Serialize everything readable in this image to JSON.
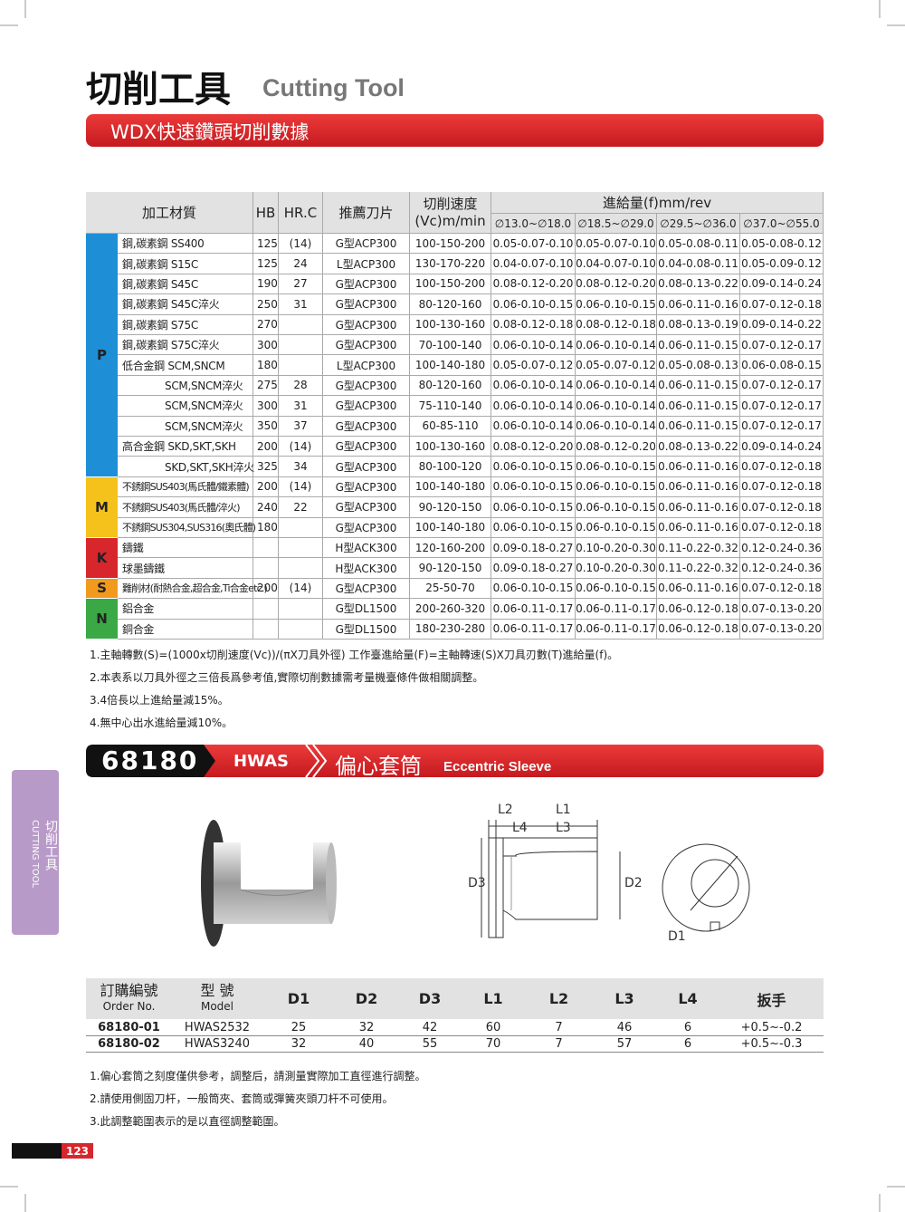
{
  "header": {
    "title": "切削工具",
    "subtitle": "Cutting Tool"
  },
  "section1": {
    "banner": "WDX快速鑽頭切削數據",
    "table": {
      "headers": {
        "material": "加工材質",
        "hb": "HB",
        "hrc": "HR.C",
        "insert": "推薦刀片",
        "speed": "切削速度",
        "speed_unit": "(Vc)m/min",
        "feed": "進給量(f)mm/rev",
        "ranges": [
          "∅13.0~∅18.0",
          "∅18.5~∅29.0",
          "∅29.5~∅36.0",
          "∅37.0~∅55.0"
        ]
      },
      "groups": [
        {
          "label": "P",
          "color": "#1e8fd6",
          "rows": [
            [
              "鋼,碳素鋼 SS400",
              125,
              "(14)",
              "G型ACP300",
              "100-150-200",
              "0.05-0.07-0.10",
              "0.05-0.07-0.10",
              "0.05-0.08-0.11",
              "0.05-0.08-0.12"
            ],
            [
              "鋼,碳素鋼 S15C",
              125,
              24,
              "L型ACP300",
              "130-170-220",
              "0.04-0.07-0.10",
              "0.04-0.07-0.10",
              "0.04-0.08-0.11",
              "0.05-0.09-0.12"
            ],
            [
              "鋼,碳素鋼 S45C",
              190,
              27,
              "G型ACP300",
              "100-150-200",
              "0.08-0.12-0.20",
              "0.08-0.12-0.20",
              "0.08-0.13-0.22",
              "0.09-0.14-0.24"
            ],
            [
              "鋼,碳素鋼 S45C淬火",
              250,
              31,
              "G型ACP300",
              "80-120-160",
              "0.06-0.10-0.15",
              "0.06-0.10-0.15",
              "0.06-0.11-0.16",
              "0.07-0.12-0.18"
            ],
            [
              "鋼,碳素鋼 S75C",
              270,
              null,
              "G型ACP300",
              "100-130-160",
              "0.08-0.12-0.18",
              "0.08-0.12-0.18",
              "0.08-0.13-0.19",
              "0.09-0.14-0.22"
            ],
            [
              "鋼,碳素鋼 S75C淬火",
              300,
              null,
              "G型ACP300",
              "70-100-140",
              "0.06-0.10-0.14",
              "0.06-0.10-0.14",
              "0.06-0.11-0.15",
              "0.07-0.12-0.17"
            ],
            [
              "低合金鋼 SCM,SNCM",
              180,
              null,
              "L型ACP300",
              "100-140-180",
              "0.05-0.07-0.12",
              "0.05-0.07-0.12",
              "0.05-0.08-0.13",
              "0.06-0.08-0.15"
            ],
            [
              "SCM,SNCM淬火",
              275,
              28,
              "G型ACP300",
              "80-120-160",
              "0.06-0.10-0.14",
              "0.06-0.10-0.14",
              "0.06-0.11-0.15",
              "0.07-0.12-0.17"
            ],
            [
              "SCM,SNCM淬火",
              300,
              31,
              "G型ACP300",
              "75-110-140",
              "0.06-0.10-0.14",
              "0.06-0.10-0.14",
              "0.06-0.11-0.15",
              "0.07-0.12-0.17"
            ],
            [
              "SCM,SNCM淬火",
              350,
              37,
              "G型ACP300",
              "60-85-110",
              "0.06-0.10-0.14",
              "0.06-0.10-0.14",
              "0.06-0.11-0.15",
              "0.07-0.12-0.17"
            ],
            [
              "高合金鋼 SKD,SKT,SKH",
              200,
              "(14)",
              "G型ACP300",
              "100-130-160",
              "0.08-0.12-0.20",
              "0.08-0.12-0.20",
              "0.08-0.13-0.22",
              "0.09-0.14-0.24"
            ],
            [
              "SKD,SKT,SKH淬火",
              325,
              34,
              "G型ACP300",
              "80-100-120",
              "0.06-0.10-0.15",
              "0.06-0.10-0.15",
              "0.06-0.11-0.16",
              "0.07-0.12-0.18"
            ]
          ]
        },
        {
          "label": "M",
          "color": "#f4c21b",
          "rows": [
            [
              "不銹鋼SUS403(馬氏體/鐵素體)",
              200,
              "(14)",
              "G型ACP300",
              "100-140-180",
              "0.06-0.10-0.15",
              "0.06-0.10-0.15",
              "0.06-0.11-0.16",
              "0.07-0.12-0.18"
            ],
            [
              "不銹鋼SUS403(馬氏體/淬火)",
              240,
              22,
              "G型ACP300",
              "90-120-150",
              "0.06-0.10-0.15",
              "0.06-0.10-0.15",
              "0.06-0.11-0.16",
              "0.07-0.12-0.18"
            ],
            [
              "不銹鋼SUS304,SUS316(奧氏體)",
              180,
              null,
              "G型ACP300",
              "100-140-180",
              "0.06-0.10-0.15",
              "0.06-0.10-0.15",
              "0.06-0.11-0.16",
              "0.07-0.12-0.18"
            ]
          ]
        },
        {
          "label": "K",
          "color": "#d8262d",
          "rows": [
            [
              "鑄鐵",
              null,
              null,
              "H型ACK300",
              "120-160-200",
              "0.09-0.18-0.27",
              "0.10-0.20-0.30",
              "0.11-0.22-0.32",
              "0.12-0.24-0.36"
            ],
            [
              "球墨鑄鐵",
              null,
              null,
              "H型ACK300",
              "90-120-150",
              "0.09-0.18-0.27",
              "0.10-0.20-0.30",
              "0.11-0.22-0.32",
              "0.12-0.24-0.36"
            ]
          ]
        },
        {
          "label": "S",
          "color": "#f29a1d",
          "rows": [
            [
              "難削材(耐熱合金,超合金,Ti合金etc.)",
              200,
              "(14)",
              "G型ACP300",
              "25-50-70",
              "0.06-0.10-0.15",
              "0.06-0.10-0.15",
              "0.06-0.11-0.16",
              "0.07-0.12-0.18"
            ]
          ]
        },
        {
          "label": "N",
          "color": "#3aa845",
          "rows": [
            [
              "鋁合金",
              null,
              null,
              "G型DL1500",
              "200-260-320",
              "0.06-0.11-0.17",
              "0.06-0.11-0.17",
              "0.06-0.12-0.18",
              "0.07-0.13-0.20"
            ],
            [
              "銅合金",
              null,
              null,
              "G型DL1500",
              "180-230-280",
              "0.06-0.11-0.17",
              "0.06-0.11-0.17",
              "0.06-0.12-0.18",
              "0.07-0.13-0.20"
            ]
          ]
        }
      ]
    },
    "notes": [
      "1.主軸轉數(S)=(1000x切削速度(Vc))/(πX刀具外徑)   工作臺進給量(F)=主軸轉速(S)X刀具刃數(T)進給量(f)。",
      "2.本表系以刀具外徑之三倍長爲參考值,實際切削數據需考量機臺條件做相關調整。",
      "3.4倍長以上進給量減15%。",
      "4.無中心出水進給量減10%。"
    ]
  },
  "section2": {
    "code": "68180",
    "series": "HWAS",
    "title": "偏心套筒",
    "title_en": "Eccentric Sleeve",
    "diagram_labels": [
      "L2",
      "L1",
      "L4",
      "L3",
      "D3",
      "D2",
      "D1"
    ],
    "table": {
      "headers": [
        [
          "訂購編號",
          "Order No."
        ],
        [
          "型 號",
          "Model"
        ],
        [
          "D1"
        ],
        [
          "D2"
        ],
        [
          "D3"
        ],
        [
          "L1"
        ],
        [
          "L2"
        ],
        [
          "L3"
        ],
        [
          "L4"
        ],
        [
          "扳手"
        ]
      ],
      "rows": [
        [
          "68180-01",
          "HWAS2532",
          25,
          32,
          42,
          60,
          7,
          46,
          6,
          "+0.5~-0.2"
        ],
        [
          "68180-02",
          "HWAS3240",
          32,
          40,
          55,
          70,
          7,
          57,
          6,
          "+0.5~-0.3"
        ]
      ]
    },
    "notes": [
      "1.偏心套筒之刻度僅供參考，調整后，請測量實際加工直徑進行調整。",
      "2.請使用側固刀杆，一般筒夾、套筒或彈簧夾頭刀杆不可使用。",
      "3.此調整範圍表示的是以直徑調整範圍。"
    ]
  },
  "side_tab": {
    "title": "切削工具",
    "subtitle": "CUTTING TOOL"
  },
  "page_number": "123"
}
